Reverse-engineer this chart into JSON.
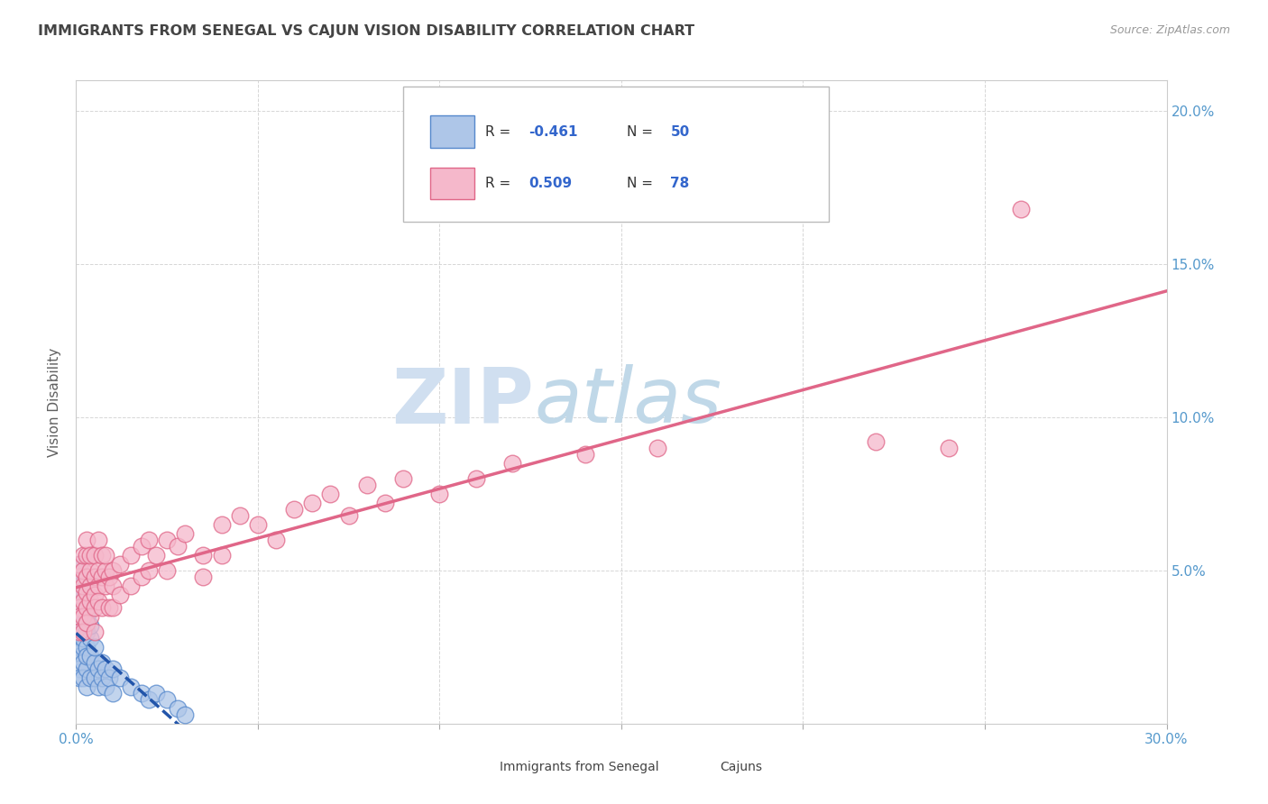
{
  "title": "IMMIGRANTS FROM SENEGAL VS CAJUN VISION DISABILITY CORRELATION CHART",
  "source": "Source: ZipAtlas.com",
  "ylabel": "Vision Disability",
  "ytick_vals": [
    0.0,
    0.05,
    0.1,
    0.15,
    0.2
  ],
  "ytick_labels": [
    "",
    "5.0%",
    "10.0%",
    "15.0%",
    "20.0%"
  ],
  "xtick_vals": [
    0.0,
    0.05,
    0.1,
    0.15,
    0.2,
    0.25,
    0.3
  ],
  "xtick_labels": [
    "0.0%",
    "",
    "",
    "",
    "",
    "",
    "30.0%"
  ],
  "xlim": [
    0.0,
    0.3
  ],
  "ylim": [
    0.0,
    0.21
  ],
  "series": [
    {
      "name": "Immigrants from Senegal",
      "color": "#aec6e8",
      "edge_color": "#5588cc",
      "line_color": "#2255aa",
      "line_style": "--"
    },
    {
      "name": "Cajuns",
      "color": "#f5b8cb",
      "edge_color": "#e06688",
      "line_color": "#e06688",
      "line_style": "-"
    }
  ],
  "watermark_zip": "ZIP",
  "watermark_atlas": "atlas",
  "watermark_color_zip": "#d0dff0",
  "watermark_color_atlas": "#c0d8e8",
  "background_color": "#ffffff",
  "grid_color": "#cccccc",
  "title_color": "#444444",
  "axis_label_color": "#5599cc",
  "blue_dots": [
    [
      0.001,
      0.032
    ],
    [
      0.001,
      0.028
    ],
    [
      0.001,
      0.038
    ],
    [
      0.001,
      0.025
    ],
    [
      0.001,
      0.042
    ],
    [
      0.001,
      0.022
    ],
    [
      0.001,
      0.035
    ],
    [
      0.001,
      0.048
    ],
    [
      0.001,
      0.018
    ],
    [
      0.001,
      0.045
    ],
    [
      0.001,
      0.015
    ],
    [
      0.001,
      0.052
    ],
    [
      0.002,
      0.03
    ],
    [
      0.002,
      0.025
    ],
    [
      0.002,
      0.038
    ],
    [
      0.002,
      0.02
    ],
    [
      0.002,
      0.043
    ],
    [
      0.002,
      0.015
    ],
    [
      0.002,
      0.033
    ],
    [
      0.002,
      0.028
    ],
    [
      0.003,
      0.03
    ],
    [
      0.003,
      0.025
    ],
    [
      0.003,
      0.018
    ],
    [
      0.003,
      0.035
    ],
    [
      0.003,
      0.022
    ],
    [
      0.003,
      0.012
    ],
    [
      0.004,
      0.028
    ],
    [
      0.004,
      0.022
    ],
    [
      0.004,
      0.015
    ],
    [
      0.004,
      0.032
    ],
    [
      0.005,
      0.02
    ],
    [
      0.005,
      0.015
    ],
    [
      0.005,
      0.025
    ],
    [
      0.006,
      0.018
    ],
    [
      0.006,
      0.012
    ],
    [
      0.007,
      0.02
    ],
    [
      0.007,
      0.015
    ],
    [
      0.008,
      0.018
    ],
    [
      0.008,
      0.012
    ],
    [
      0.009,
      0.015
    ],
    [
      0.01,
      0.018
    ],
    [
      0.01,
      0.01
    ],
    [
      0.012,
      0.015
    ],
    [
      0.015,
      0.012
    ],
    [
      0.018,
      0.01
    ],
    [
      0.02,
      0.008
    ],
    [
      0.022,
      0.01
    ],
    [
      0.025,
      0.008
    ],
    [
      0.028,
      0.005
    ],
    [
      0.03,
      0.003
    ]
  ],
  "pink_dots": [
    [
      0.001,
      0.042
    ],
    [
      0.001,
      0.038
    ],
    [
      0.001,
      0.035
    ],
    [
      0.001,
      0.048
    ],
    [
      0.001,
      0.03
    ],
    [
      0.001,
      0.052
    ],
    [
      0.002,
      0.04
    ],
    [
      0.002,
      0.045
    ],
    [
      0.002,
      0.035
    ],
    [
      0.002,
      0.05
    ],
    [
      0.002,
      0.03
    ],
    [
      0.002,
      0.055
    ],
    [
      0.003,
      0.038
    ],
    [
      0.003,
      0.043
    ],
    [
      0.003,
      0.048
    ],
    [
      0.003,
      0.033
    ],
    [
      0.003,
      0.055
    ],
    [
      0.003,
      0.06
    ],
    [
      0.004,
      0.04
    ],
    [
      0.004,
      0.045
    ],
    [
      0.004,
      0.05
    ],
    [
      0.004,
      0.035
    ],
    [
      0.004,
      0.055
    ],
    [
      0.005,
      0.042
    ],
    [
      0.005,
      0.048
    ],
    [
      0.005,
      0.038
    ],
    [
      0.005,
      0.055
    ],
    [
      0.005,
      0.03
    ],
    [
      0.006,
      0.045
    ],
    [
      0.006,
      0.05
    ],
    [
      0.006,
      0.04
    ],
    [
      0.006,
      0.06
    ],
    [
      0.007,
      0.048
    ],
    [
      0.007,
      0.055
    ],
    [
      0.007,
      0.038
    ],
    [
      0.008,
      0.05
    ],
    [
      0.008,
      0.045
    ],
    [
      0.008,
      0.055
    ],
    [
      0.009,
      0.048
    ],
    [
      0.009,
      0.038
    ],
    [
      0.01,
      0.05
    ],
    [
      0.01,
      0.045
    ],
    [
      0.01,
      0.038
    ],
    [
      0.012,
      0.052
    ],
    [
      0.012,
      0.042
    ],
    [
      0.015,
      0.055
    ],
    [
      0.015,
      0.045
    ],
    [
      0.018,
      0.058
    ],
    [
      0.018,
      0.048
    ],
    [
      0.02,
      0.06
    ],
    [
      0.02,
      0.05
    ],
    [
      0.022,
      0.055
    ],
    [
      0.025,
      0.06
    ],
    [
      0.025,
      0.05
    ],
    [
      0.028,
      0.058
    ],
    [
      0.03,
      0.062
    ],
    [
      0.035,
      0.055
    ],
    [
      0.035,
      0.048
    ],
    [
      0.04,
      0.065
    ],
    [
      0.04,
      0.055
    ],
    [
      0.045,
      0.068
    ],
    [
      0.05,
      0.065
    ],
    [
      0.055,
      0.06
    ],
    [
      0.06,
      0.07
    ],
    [
      0.065,
      0.072
    ],
    [
      0.07,
      0.075
    ],
    [
      0.075,
      0.068
    ],
    [
      0.08,
      0.078
    ],
    [
      0.085,
      0.072
    ],
    [
      0.09,
      0.08
    ],
    [
      0.1,
      0.075
    ],
    [
      0.11,
      0.08
    ],
    [
      0.12,
      0.085
    ],
    [
      0.14,
      0.088
    ],
    [
      0.16,
      0.09
    ],
    [
      0.22,
      0.092
    ],
    [
      0.24,
      0.09
    ],
    [
      0.26,
      0.168
    ]
  ]
}
